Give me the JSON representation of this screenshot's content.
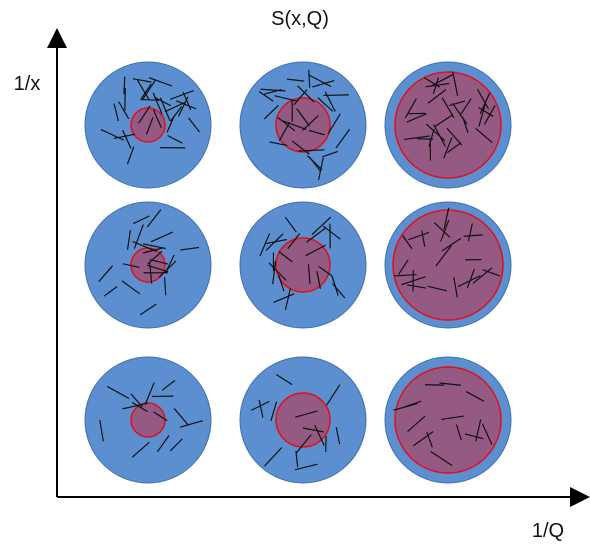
{
  "diagram": {
    "title": "S(x,Q)",
    "y_axis_label": "1/x",
    "x_axis_label": "1/Q"
  }
}
